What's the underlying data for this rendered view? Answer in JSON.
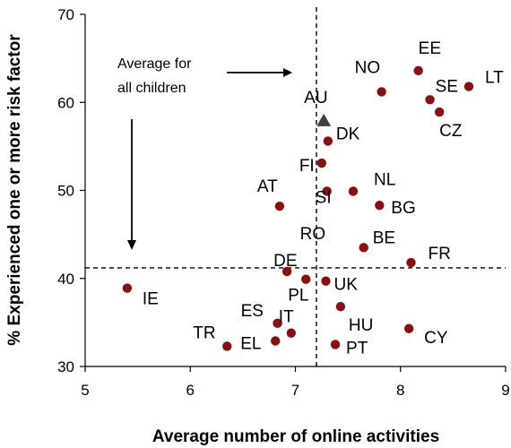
{
  "chart_data": {
    "type": "scatter",
    "title": "",
    "xlabel": "Average number of online activities",
    "ylabel": "% Experienced one or more risk factor",
    "xlim": [
      5,
      9
    ],
    "ylim": [
      30,
      70
    ],
    "xticks": [
      "5",
      "6",
      "7",
      "8",
      "9"
    ],
    "yticks": [
      "30",
      "40",
      "50",
      "60",
      "70"
    ],
    "grid": false,
    "reference_lines": {
      "x_average": 7.2,
      "y_average": 41.2
    },
    "points": [
      {
        "label": "EE",
        "x": 8.17,
        "y": 63.6,
        "marker": "circle"
      },
      {
        "label": "NO",
        "x": 7.82,
        "y": 61.2,
        "marker": "circle"
      },
      {
        "label": "LT",
        "x": 8.65,
        "y": 61.8,
        "marker": "circle"
      },
      {
        "label": "SE",
        "x": 8.28,
        "y": 60.3,
        "marker": "circle"
      },
      {
        "label": "CZ",
        "x": 8.37,
        "y": 58.9,
        "marker": "circle"
      },
      {
        "label": "AU",
        "x": 7.27,
        "y": 57.9,
        "marker": "triangle"
      },
      {
        "label": "DK",
        "x": 7.31,
        "y": 55.6,
        "marker": "circle"
      },
      {
        "label": "FI",
        "x": 7.25,
        "y": 53.1,
        "marker": "circle"
      },
      {
        "label": "SI",
        "x": 7.3,
        "y": 49.9,
        "marker": "circle"
      },
      {
        "label": "NL",
        "x": 7.55,
        "y": 49.9,
        "marker": "circle"
      },
      {
        "label": "AT",
        "x": 6.85,
        "y": 48.2,
        "marker": "circle"
      },
      {
        "label": "BG",
        "x": 7.8,
        "y": 48.3,
        "marker": "circle"
      },
      {
        "label": "RO",
        "x": 7.3,
        "y": 48.0,
        "marker": "none"
      },
      {
        "label": "BE",
        "x": 7.65,
        "y": 43.5,
        "marker": "circle"
      },
      {
        "label": "FR",
        "x": 8.1,
        "y": 41.8,
        "marker": "circle"
      },
      {
        "label": "DE",
        "x": 6.92,
        "y": 40.8,
        "marker": "circle"
      },
      {
        "label": "PL",
        "x": 7.1,
        "y": 39.9,
        "marker": "circle"
      },
      {
        "label": "UK",
        "x": 7.29,
        "y": 39.7,
        "marker": "circle"
      },
      {
        "label": "IE",
        "x": 5.4,
        "y": 38.9,
        "marker": "circle"
      },
      {
        "label": "HU",
        "x": 7.43,
        "y": 36.8,
        "marker": "circle"
      },
      {
        "label": "ES",
        "x": 6.83,
        "y": 34.9,
        "marker": "circle"
      },
      {
        "label": "IT",
        "x": 6.96,
        "y": 33.8,
        "marker": "circle"
      },
      {
        "label": "CY",
        "x": 8.08,
        "y": 34.3,
        "marker": "circle"
      },
      {
        "label": "EL",
        "x": 6.81,
        "y": 32.9,
        "marker": "circle"
      },
      {
        "label": "TR",
        "x": 6.35,
        "y": 32.3,
        "marker": "circle"
      },
      {
        "label": "PT",
        "x": 7.38,
        "y": 32.5,
        "marker": "circle"
      }
    ],
    "annotations": [
      {
        "text_lines": [
          "Average for",
          "all children"
        ]
      }
    ],
    "colors": {
      "marker": "#8b0f0f",
      "triangle": "#404040",
      "lines": "#000000"
    }
  }
}
